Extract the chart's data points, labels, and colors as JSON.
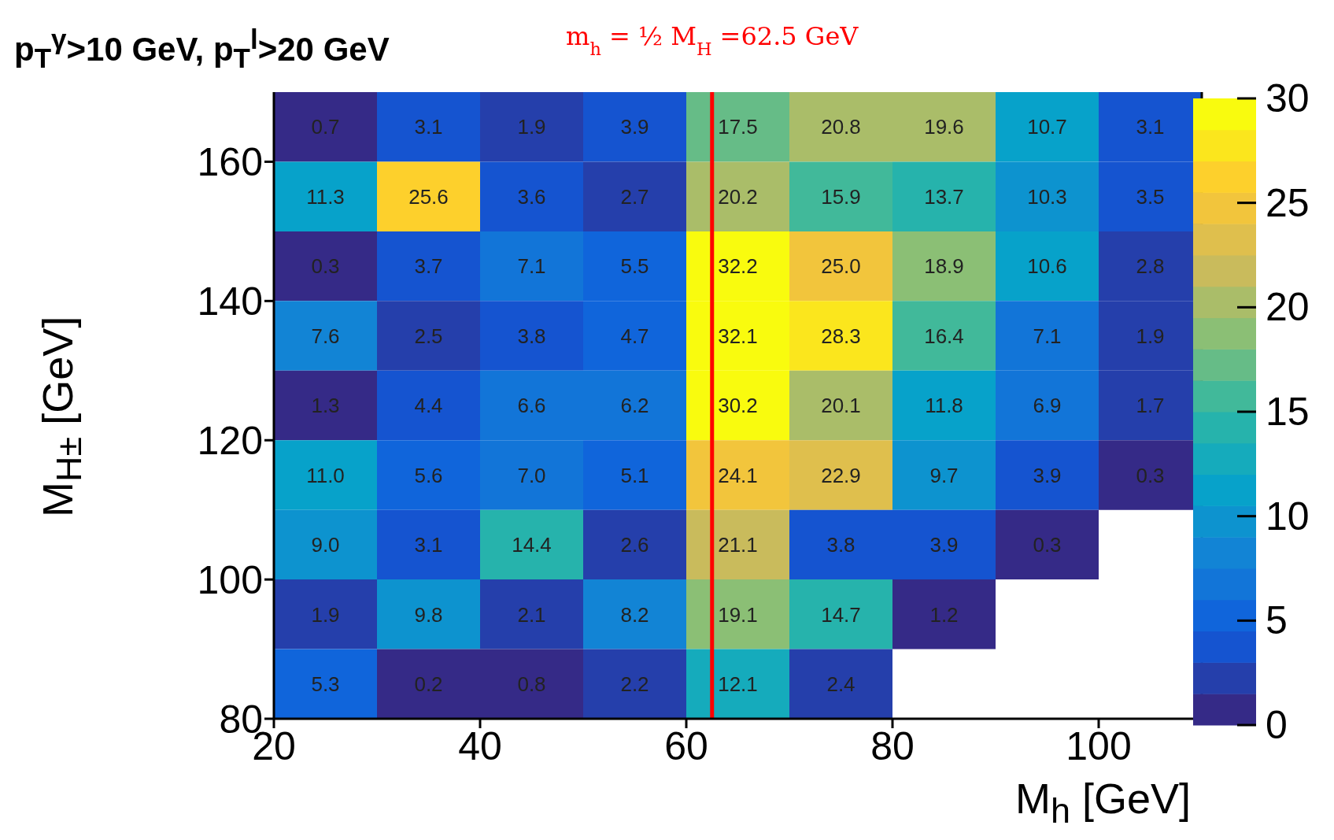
{
  "chart_data": {
    "type": "heatmap",
    "title": "p$_{T}$$^{γ}$>10 GeV, p$_{T}$$^{l}$>20 GeV",
    "xlabel": "M$_{h}$ [GeV]",
    "ylabel": "M$_{H±}$ [GeV]",
    "xlim": [
      20,
      110
    ],
    "xticks": [
      20,
      40,
      60,
      80,
      100
    ],
    "ylim": [
      80,
      170
    ],
    "yticks": [
      80,
      100,
      120,
      140,
      160
    ],
    "clim": [
      0,
      30
    ],
    "cticks": [
      0,
      5,
      10,
      15,
      20,
      25,
      30
    ],
    "cells": [
      [
        0.7,
        3.1,
        1.9,
        3.9,
        17.5,
        20.8,
        19.6,
        10.7,
        3.1
      ],
      [
        11.3,
        25.6,
        3.6,
        2.7,
        20.2,
        15.9,
        13.7,
        10.3,
        3.5
      ],
      [
        0.3,
        3.7,
        7.1,
        5.5,
        32.2,
        25.0,
        18.9,
        10.6,
        2.8
      ],
      [
        7.6,
        2.5,
        3.8,
        4.7,
        32.1,
        28.3,
        16.4,
        7.1,
        1.9
      ],
      [
        1.3,
        4.4,
        6.6,
        6.2,
        30.2,
        20.1,
        11.8,
        6.9,
        1.7
      ],
      [
        11.0,
        5.6,
        7.0,
        5.1,
        24.1,
        22.9,
        9.7,
        3.9,
        0.3
      ],
      [
        9.0,
        3.1,
        14.4,
        2.6,
        21.1,
        3.8,
        3.9,
        0.3,
        null
      ],
      [
        1.9,
        9.8,
        2.1,
        8.2,
        19.1,
        14.7,
        1.2,
        null,
        null
      ],
      [
        5.3,
        0.2,
        0.8,
        2.2,
        12.1,
        2.4,
        null,
        null,
        null
      ]
    ],
    "cell_labels": [
      [
        "0.7",
        "3.1",
        "1.9",
        "3.9",
        "17.5",
        "20.8",
        "19.6",
        "10.7",
        "3.1"
      ],
      [
        "11.3",
        "25.6",
        "3.6",
        "2.7",
        "20.2",
        "15.9",
        "13.7",
        "10.3",
        "3.5"
      ],
      [
        "0.3",
        "3.7",
        "7.1",
        "5.5",
        "32.2",
        "25.0",
        "18.9",
        "10.6",
        "2.8"
      ],
      [
        "7.6",
        "2.5",
        "3.8",
        "4.7",
        "32.1",
        "28.3",
        "16.4",
        "7.1",
        "1.9"
      ],
      [
        "1.3",
        "4.4",
        "6.6",
        "6.2",
        "30.2",
        "20.1",
        "11.8",
        "6.9",
        "1.7"
      ],
      [
        "11.0",
        "5.6",
        "7.0",
        "5.1",
        "24.1",
        "22.9",
        "9.7",
        "3.9",
        "0.3"
      ],
      [
        "9.0",
        "3.1",
        "14.4",
        "2.6",
        "21.1",
        "3.8",
        "3.9",
        "0.3",
        null
      ],
      [
        "1.9",
        "9.8",
        "2.1",
        "8.2",
        "19.1",
        "14.7",
        "1.2",
        null,
        null
      ],
      [
        "5.3",
        "0.2",
        "0.8",
        "2.2",
        "12.1",
        "2.4",
        null,
        null,
        null
      ]
    ],
    "ref_lines": [
      {
        "axis": "x",
        "value": 62.5,
        "label": "m$_{h}$ = ½ M$_{H}$=62.5 GeV",
        "color": "#ff0000"
      }
    ]
  }
}
